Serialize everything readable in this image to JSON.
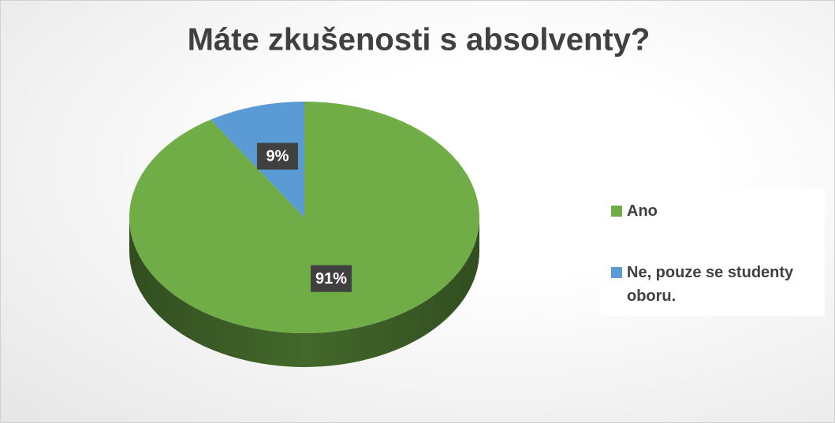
{
  "chart_data": {
    "type": "pie",
    "title": "Máte zkušenosti s absolventy?",
    "categories": [
      "Ano",
      "Ne, pouze se studenty oboru."
    ],
    "values": [
      91,
      9
    ],
    "value_labels": [
      "91%",
      "9%"
    ],
    "colors": [
      "#70ad47",
      "#5b9bd5"
    ],
    "legend": "right"
  }
}
